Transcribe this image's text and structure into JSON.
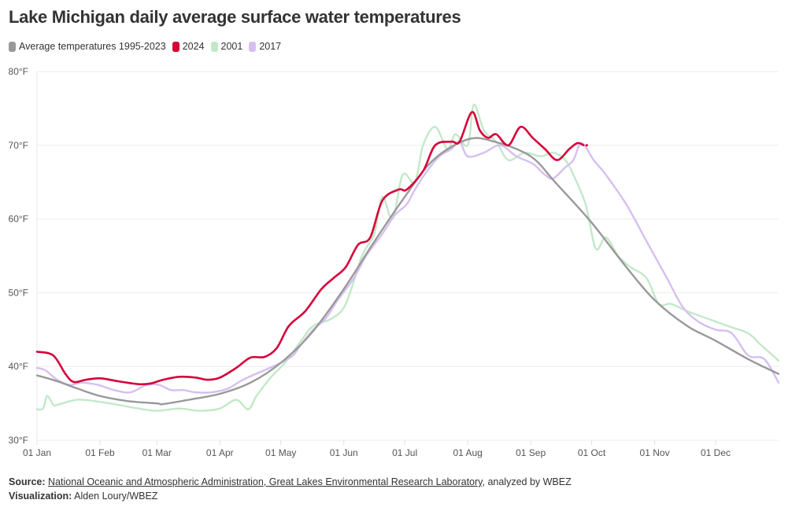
{
  "title": "Lake Michigan daily average surface water temperatures",
  "legend": [
    {
      "label": "Average temperatures 1995-2023",
      "color": "#999999"
    },
    {
      "label": "2024",
      "color": "#d6003a"
    },
    {
      "label": "2001",
      "color": "#c3e8c8"
    },
    {
      "label": "2017",
      "color": "#d6bff0"
    }
  ],
  "footer": {
    "source_label": "Source:",
    "source_link_1": "National Oceanic and Atmospheric Administration",
    "source_sep": ", ",
    "source_link_2": "Great Lakes Environmental Research Laboratory",
    "source_suffix": ", analyzed by WBEZ",
    "viz_label": "Visualization:",
    "viz_value": "Alden Loury/WBEZ"
  },
  "chart_data": {
    "type": "line",
    "title": "Lake Michigan daily average surface water temperatures",
    "xlabel": "",
    "ylabel": "",
    "x_unit": "day of year (0 = 01 Jan)",
    "xlim": [
      0,
      365
    ],
    "ylim": [
      30,
      80
    ],
    "yticks": [
      30,
      40,
      50,
      60,
      70,
      80
    ],
    "ytick_labels": [
      "30°F",
      "40°F",
      "50°F",
      "60°F",
      "70°F",
      "80°F"
    ],
    "xticks": [
      0,
      31,
      59,
      90,
      120,
      151,
      181,
      212,
      243,
      273,
      304,
      334
    ],
    "xtick_labels": [
      "01 Jan",
      "01 Feb",
      "01 Mar",
      "01 Apr",
      "01 May",
      "01 Jun",
      "01 Jul",
      "01 Aug",
      "01 Sep",
      "01 Oct",
      "01 Nov",
      "01 Dec"
    ],
    "grid": true,
    "legend_position": "top-left",
    "series": [
      {
        "name": "Average temperatures 1995-2023",
        "color": "#999999",
        "x": [
          0,
          10,
          20,
          31,
          45,
          59,
          62,
          75,
          90,
          105,
          120,
          135,
          151,
          165,
          181,
          195,
          212,
          225,
          243,
          255,
          273,
          290,
          304,
          320,
          334,
          350,
          365
        ],
        "y": [
          38.8,
          38.0,
          37.0,
          36.0,
          35.3,
          35.0,
          34.9,
          35.5,
          36.3,
          37.8,
          40.5,
          44.5,
          50.5,
          56.5,
          63.0,
          68.0,
          70.8,
          70.5,
          68.5,
          65.0,
          59.5,
          53.5,
          49.0,
          45.5,
          43.5,
          41.0,
          39.0
        ]
      },
      {
        "name": "2024",
        "color": "#d6003a",
        "x": [
          0,
          8,
          14,
          18,
          24,
          31,
          40,
          50,
          56,
          62,
          70,
          78,
          84,
          90,
          98,
          105,
          112,
          118,
          124,
          132,
          140,
          146,
          152,
          158,
          164,
          170,
          178,
          182,
          190,
          196,
          204,
          208,
          214,
          218,
          222,
          226,
          232,
          238,
          244,
          250,
          256,
          262,
          266,
          269
        ],
        "y": [
          42.0,
          41.5,
          39.0,
          37.9,
          38.2,
          38.4,
          38.0,
          37.6,
          37.7,
          38.2,
          38.6,
          38.5,
          38.2,
          38.5,
          39.8,
          41.2,
          41.3,
          42.5,
          45.5,
          47.5,
          50.5,
          52.0,
          53.5,
          56.5,
          57.5,
          62.5,
          64.0,
          64.0,
          66.5,
          70.0,
          70.5,
          70.5,
          74.5,
          72.0,
          71.0,
          71.5,
          70.0,
          72.5,
          71.0,
          69.5,
          68.0,
          69.5,
          70.3,
          70.0
        ]
      },
      {
        "name": "2001",
        "color": "#c3e8c8",
        "x": [
          0,
          3,
          5,
          8,
          10,
          20,
          31,
          40,
          50,
          59,
          70,
          80,
          90,
          98,
          104,
          108,
          115,
          122,
          130,
          136,
          145,
          152,
          160,
          166,
          170,
          175,
          180,
          186,
          190,
          196,
          202,
          206,
          212,
          215,
          220,
          226,
          232,
          240,
          248,
          254,
          260,
          264,
          270,
          275,
          280,
          286,
          292,
          300,
          306,
          312,
          320,
          330,
          340,
          350,
          356,
          365
        ],
        "y": [
          34.2,
          34.3,
          36.0,
          34.8,
          34.8,
          35.5,
          35.2,
          34.8,
          34.3,
          34.0,
          34.3,
          34.0,
          34.3,
          35.5,
          34.2,
          36.0,
          38.5,
          40.5,
          43.5,
          45.5,
          46.5,
          48.5,
          55.0,
          58.0,
          63.0,
          60.0,
          66.0,
          65.0,
          70.0,
          72.5,
          69.5,
          71.5,
          70.0,
          75.5,
          72.0,
          70.5,
          68.0,
          69.0,
          68.5,
          69.0,
          68.0,
          66.0,
          62.0,
          56.0,
          57.5,
          55.0,
          53.5,
          52.0,
          48.5,
          48.5,
          47.5,
          46.5,
          45.5,
          44.5,
          43.0,
          40.8
        ]
      },
      {
        "name": "2017",
        "color": "#d6bff0",
        "x": [
          0,
          4,
          10,
          16,
          22,
          30,
          38,
          46,
          54,
          60,
          66,
          72,
          78,
          86,
          94,
          100,
          106,
          112,
          120,
          126,
          130,
          136,
          142,
          148,
          156,
          162,
          170,
          176,
          182,
          186,
          192,
          198,
          204,
          208,
          212,
          220,
          228,
          236,
          244,
          250,
          254,
          260,
          264,
          268,
          274,
          280,
          290,
          300,
          310,
          318,
          326,
          334,
          342,
          350,
          358,
          365
        ],
        "y": [
          39.8,
          39.5,
          38.2,
          37.5,
          37.8,
          37.5,
          36.8,
          36.5,
          37.5,
          37.5,
          36.8,
          36.8,
          36.5,
          36.5,
          37.0,
          38.0,
          38.8,
          39.5,
          40.5,
          41.5,
          43.0,
          45.0,
          46.5,
          49.0,
          52.0,
          55.0,
          58.0,
          60.5,
          62.0,
          64.0,
          66.5,
          68.5,
          69.5,
          70.5,
          68.5,
          69.0,
          70.0,
          68.5,
          67.5,
          66.0,
          65.5,
          67.0,
          68.0,
          70.3,
          68.0,
          66.0,
          62.0,
          57.0,
          52.0,
          48.0,
          46.0,
          45.0,
          44.5,
          41.5,
          41.0,
          37.8
        ]
      }
    ]
  }
}
